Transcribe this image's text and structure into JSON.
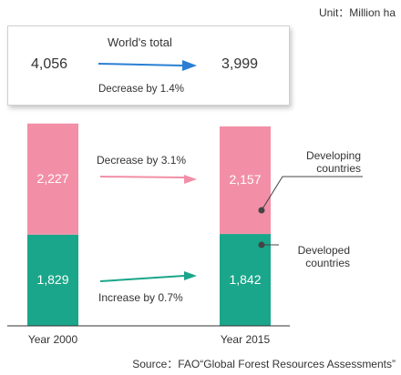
{
  "unit_label": "Unit：Million ha",
  "world_total": {
    "title": "World's total",
    "start": "4,056",
    "end": "3,999",
    "change": "Decrease by 1.4%"
  },
  "chart_data": {
    "type": "bar",
    "stacked": true,
    "categories": [
      "Year 2000",
      "Year 2015"
    ],
    "series": [
      {
        "name": "Developed countries",
        "values": [
          1829,
          1842
        ],
        "labels": [
          "1,829",
          "1,842"
        ],
        "color": "#1aa68a",
        "change": "Increase by 0.7%"
      },
      {
        "name": "Developing countries",
        "values": [
          2227,
          2157
        ],
        "labels": [
          "2,227",
          "2,157"
        ],
        "color": "#f28fa6",
        "change": "Decrease by 3.1%"
      }
    ],
    "xlabel": "",
    "ylabel": ""
  },
  "colors": {
    "arrow_total": "#2a7fd4",
    "arrow_developing": "#f28fa6",
    "arrow_developed": "#1aa68a",
    "axis": "#333333"
  },
  "source": "Source：FAO“Global Forest Resources Assessments”"
}
